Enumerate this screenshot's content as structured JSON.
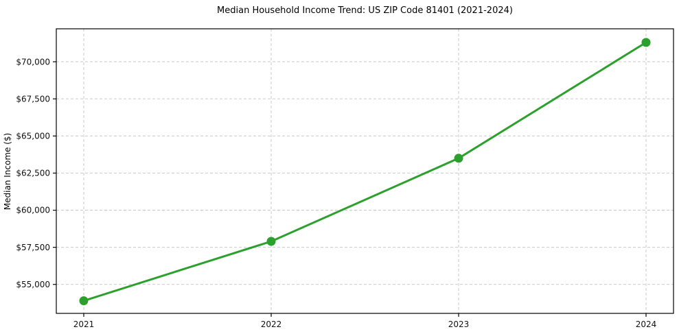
{
  "chart_data": {
    "type": "line",
    "title": "Median Household Income Trend: US ZIP Code 81401 (2021-2024)",
    "xlabel": "",
    "ylabel": "Median Income ($)",
    "categories": [
      "2021",
      "2022",
      "2023",
      "2024"
    ],
    "series": [
      {
        "name": "Median Household Income",
        "values": [
          53900,
          57900,
          63500,
          71300
        ]
      }
    ],
    "yticks": {
      "values": [
        55000,
        57500,
        60000,
        62500,
        65000,
        67500,
        70000
      ],
      "labels": [
        "$55,000",
        "$57,500",
        "$60,000",
        "$62,500",
        "$65,000",
        "$67,500",
        "$70,000"
      ]
    },
    "ylim": [
      53050,
      72220
    ],
    "grid": true,
    "legend": "none",
    "colors": {
      "line": "#2ca02c",
      "marker": "#2ca02c",
      "grid": "#c9c9c9",
      "spine": "#000000",
      "text": "#111111",
      "background": "#ffffff"
    }
  }
}
